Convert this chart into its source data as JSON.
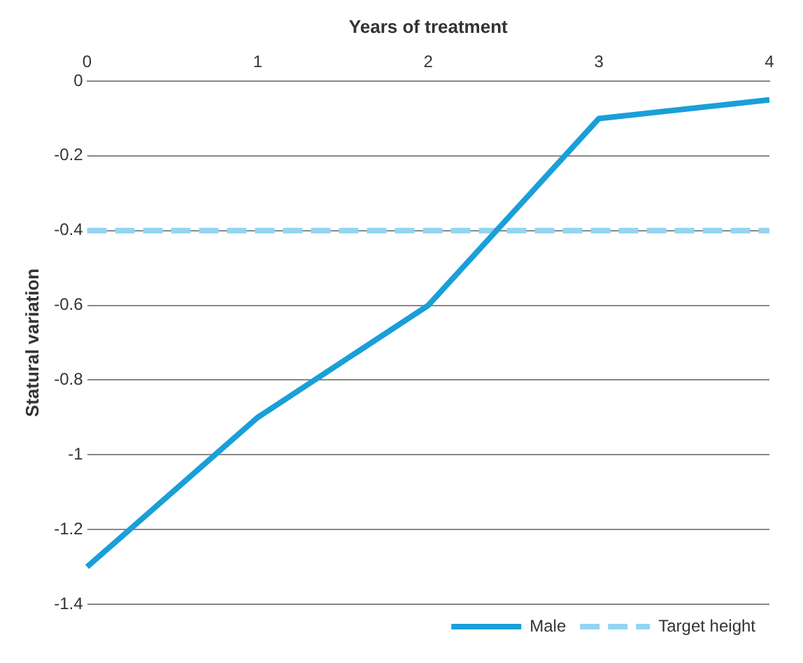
{
  "chart_data": {
    "type": "line",
    "xlabel": "Years of treatment",
    "ylabel": "Statural variation",
    "categories": [
      "0",
      "1",
      "2",
      "3",
      "4"
    ],
    "series": [
      {
        "name": "Male",
        "color": "#1a9fd9",
        "values": [
          -1.3,
          -0.9,
          -0.6,
          -0.1,
          -0.05
        ],
        "line_style": "solid"
      },
      {
        "name": "Target height",
        "color": "#93d5f2",
        "values": [
          -0.4,
          -0.4,
          -0.4,
          -0.4,
          -0.4
        ],
        "line_style": "dashed"
      }
    ],
    "ylim": [
      -1.4,
      0
    ],
    "yticks": [
      0,
      -0.2,
      -0.4,
      -0.6,
      -0.8,
      -1,
      -1.2,
      -1.4
    ],
    "grid": "y",
    "legend": "bottom right",
    "marker": "none"
  }
}
